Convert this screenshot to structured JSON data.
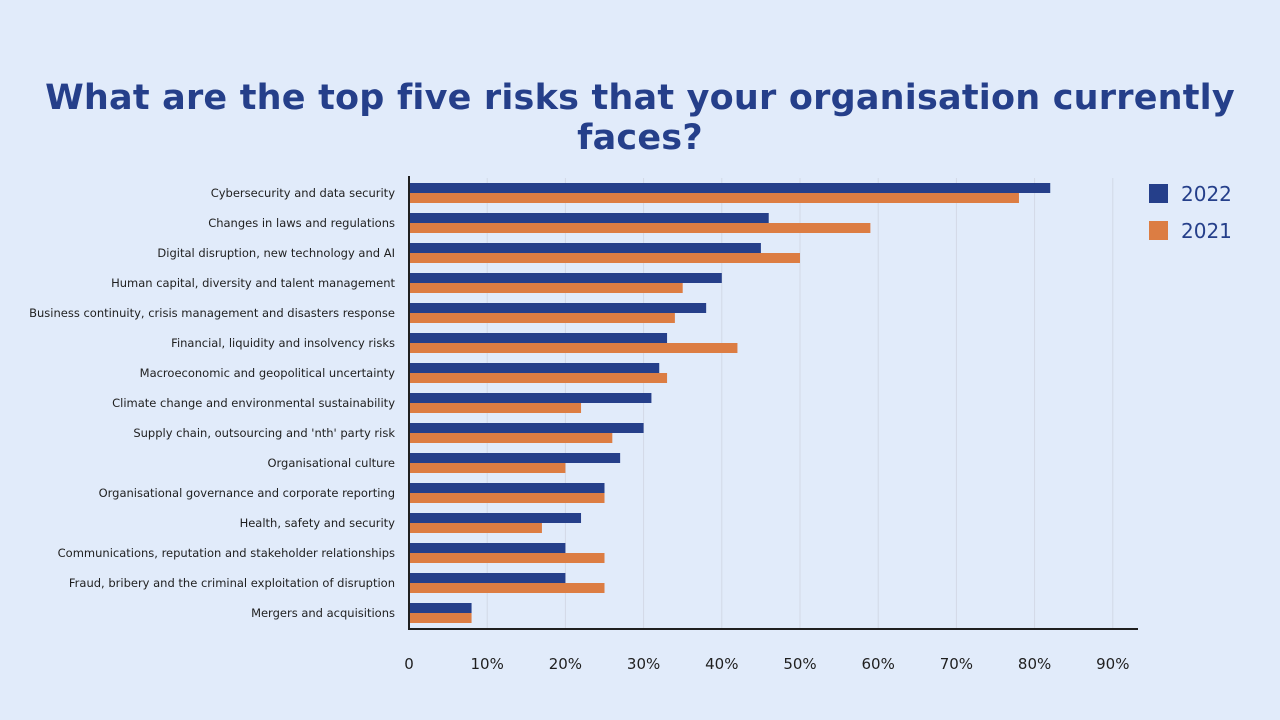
{
  "chart_data": {
    "type": "bar",
    "orientation": "horizontal",
    "title": "What are the top five risks that your organisation currently faces?",
    "categories": [
      "Cybersecurity and data security",
      "Changes in laws and regulations",
      "Digital disruption, new technology and AI",
      "Human capital, diversity and talent management",
      "Business continuity, crisis management and disasters response",
      "Financial, liquidity and insolvency risks",
      "Macroeconomic and geopolitical uncertainty",
      "Climate change and environmental sustainability",
      "Supply chain, outsourcing and 'nth' party risk",
      "Organisational culture",
      "Organisational governance and corporate reporting",
      "Health, safety and security",
      "Communications, reputation and stakeholder relationships",
      "Fraud, bribery and the criminal exploitation of disruption",
      "Mergers and acquisitions"
    ],
    "series": [
      {
        "name": "2022",
        "color": "#253f8a",
        "values": [
          82,
          46,
          45,
          40,
          38,
          33,
          32,
          31,
          30,
          27,
          25,
          22,
          20,
          20,
          8
        ]
      },
      {
        "name": "2021",
        "color": "#dc7d43",
        "values": [
          78,
          59,
          50,
          35,
          34,
          42,
          33,
          22,
          26,
          20,
          25,
          17,
          25,
          25,
          8
        ]
      }
    ],
    "xlim": [
      0,
      90
    ],
    "xticks": [
      0,
      10,
      20,
      30,
      40,
      50,
      60,
      70,
      80,
      90
    ],
    "xtick_labels": [
      "0",
      "10%",
      "20%",
      "30%",
      "40%",
      "50%",
      "60%",
      "70%",
      "80%",
      "90%"
    ],
    "grid": true,
    "legend_position": "top-right"
  }
}
